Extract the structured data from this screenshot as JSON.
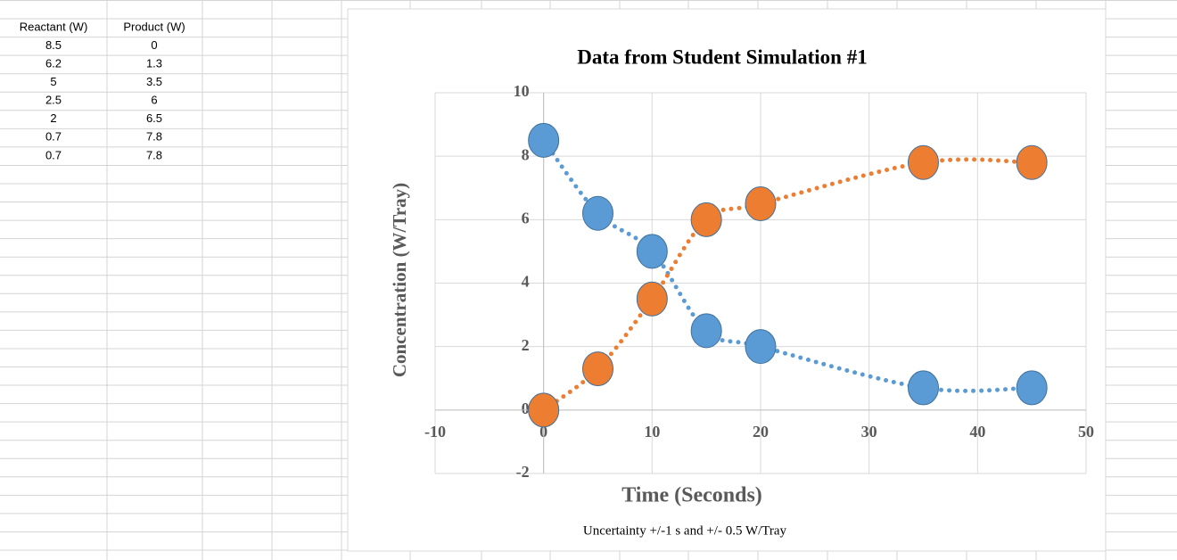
{
  "table": {
    "header": [
      "Reactant (W)",
      "Product (W)"
    ],
    "rows": [
      [
        8.5,
        0
      ],
      [
        6.2,
        1.3
      ],
      [
        5,
        3.5
      ],
      [
        2.5,
        6
      ],
      [
        2,
        6.5
      ],
      [
        0.7,
        7.8
      ],
      [
        0.7,
        7.8
      ]
    ]
  },
  "chart_data": {
    "type": "scatter",
    "title": "Data from Student Simulation #1",
    "x_label": "Time (Seconds)",
    "y_label": "Concentration (W/Tray)",
    "annotation": "Uncertainty +/-1 s and +/- 0.5 W/Tray",
    "x": [
      0,
      5,
      10,
      15,
      20,
      35,
      45
    ],
    "series": [
      {
        "color": "#5b9bd5",
        "values": [
          8.5,
          6.2,
          5,
          2.5,
          2,
          0.7,
          0.7
        ]
      },
      {
        "color": "#ed7d31",
        "values": [
          0,
          1.3,
          3.5,
          6,
          6.5,
          7.8,
          7.8
        ]
      }
    ],
    "xlim": [
      -10,
      50
    ],
    "xticks": [
      -10,
      0,
      10,
      20,
      30,
      40,
      50
    ],
    "ylim": [
      -2,
      10
    ],
    "yticks": [
      -2,
      0,
      2,
      4,
      6,
      8,
      10
    ],
    "grid": true,
    "trendline": true
  }
}
